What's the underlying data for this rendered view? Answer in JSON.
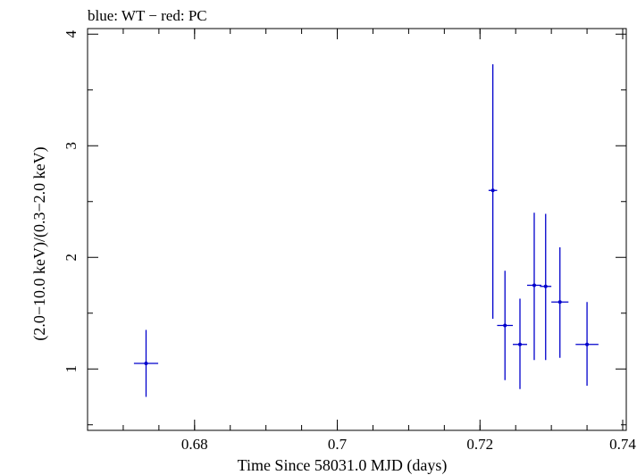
{
  "chart_data": {
    "type": "scatter",
    "title": "blue: WT − red: PC",
    "xlabel": "Time Since 58031.0 MJD (days)",
    "ylabel": "(2.0−10.0 keV)/(0.3−2.0 keV)",
    "xlim": [
      0.665,
      0.7405
    ],
    "ylim": [
      0.45,
      4.05
    ],
    "x_ticks": [
      {
        "value": 0.68,
        "label": "0.68"
      },
      {
        "value": 0.7,
        "label": "0.7"
      },
      {
        "value": 0.72,
        "label": "0.72"
      },
      {
        "value": 0.74,
        "label": "0.74"
      }
    ],
    "y_ticks": [
      {
        "value": 1,
        "label": "1"
      },
      {
        "value": 2,
        "label": "2"
      },
      {
        "value": 3,
        "label": "3"
      },
      {
        "value": 4,
        "label": "4"
      }
    ],
    "grid": false,
    "series": [
      {
        "name": "WT",
        "color": "#0000cc",
        "points": [
          {
            "x": 0.6732,
            "y": 1.05,
            "xerr": 0.0017,
            "ylo": 0.75,
            "yhi": 1.35
          },
          {
            "x": 0.7218,
            "y": 2.6,
            "xerr": 0.0006,
            "ylo": 1.45,
            "yhi": 3.73
          },
          {
            "x": 0.7235,
            "y": 1.39,
            "xerr": 0.0011,
            "ylo": 0.9,
            "yhi": 1.88
          },
          {
            "x": 0.7256,
            "y": 1.22,
            "xerr": 0.001,
            "ylo": 0.82,
            "yhi": 1.63
          },
          {
            "x": 0.7276,
            "y": 1.75,
            "xerr": 0.001,
            "ylo": 1.08,
            "yhi": 2.4
          },
          {
            "x": 0.7292,
            "y": 1.74,
            "xerr": 0.0008,
            "ylo": 1.08,
            "yhi": 2.39
          },
          {
            "x": 0.7312,
            "y": 1.6,
            "xerr": 0.0012,
            "ylo": 1.1,
            "yhi": 2.09
          },
          {
            "x": 0.735,
            "y": 1.22,
            "xerr": 0.0016,
            "ylo": 0.85,
            "yhi": 1.6
          }
        ]
      }
    ]
  }
}
